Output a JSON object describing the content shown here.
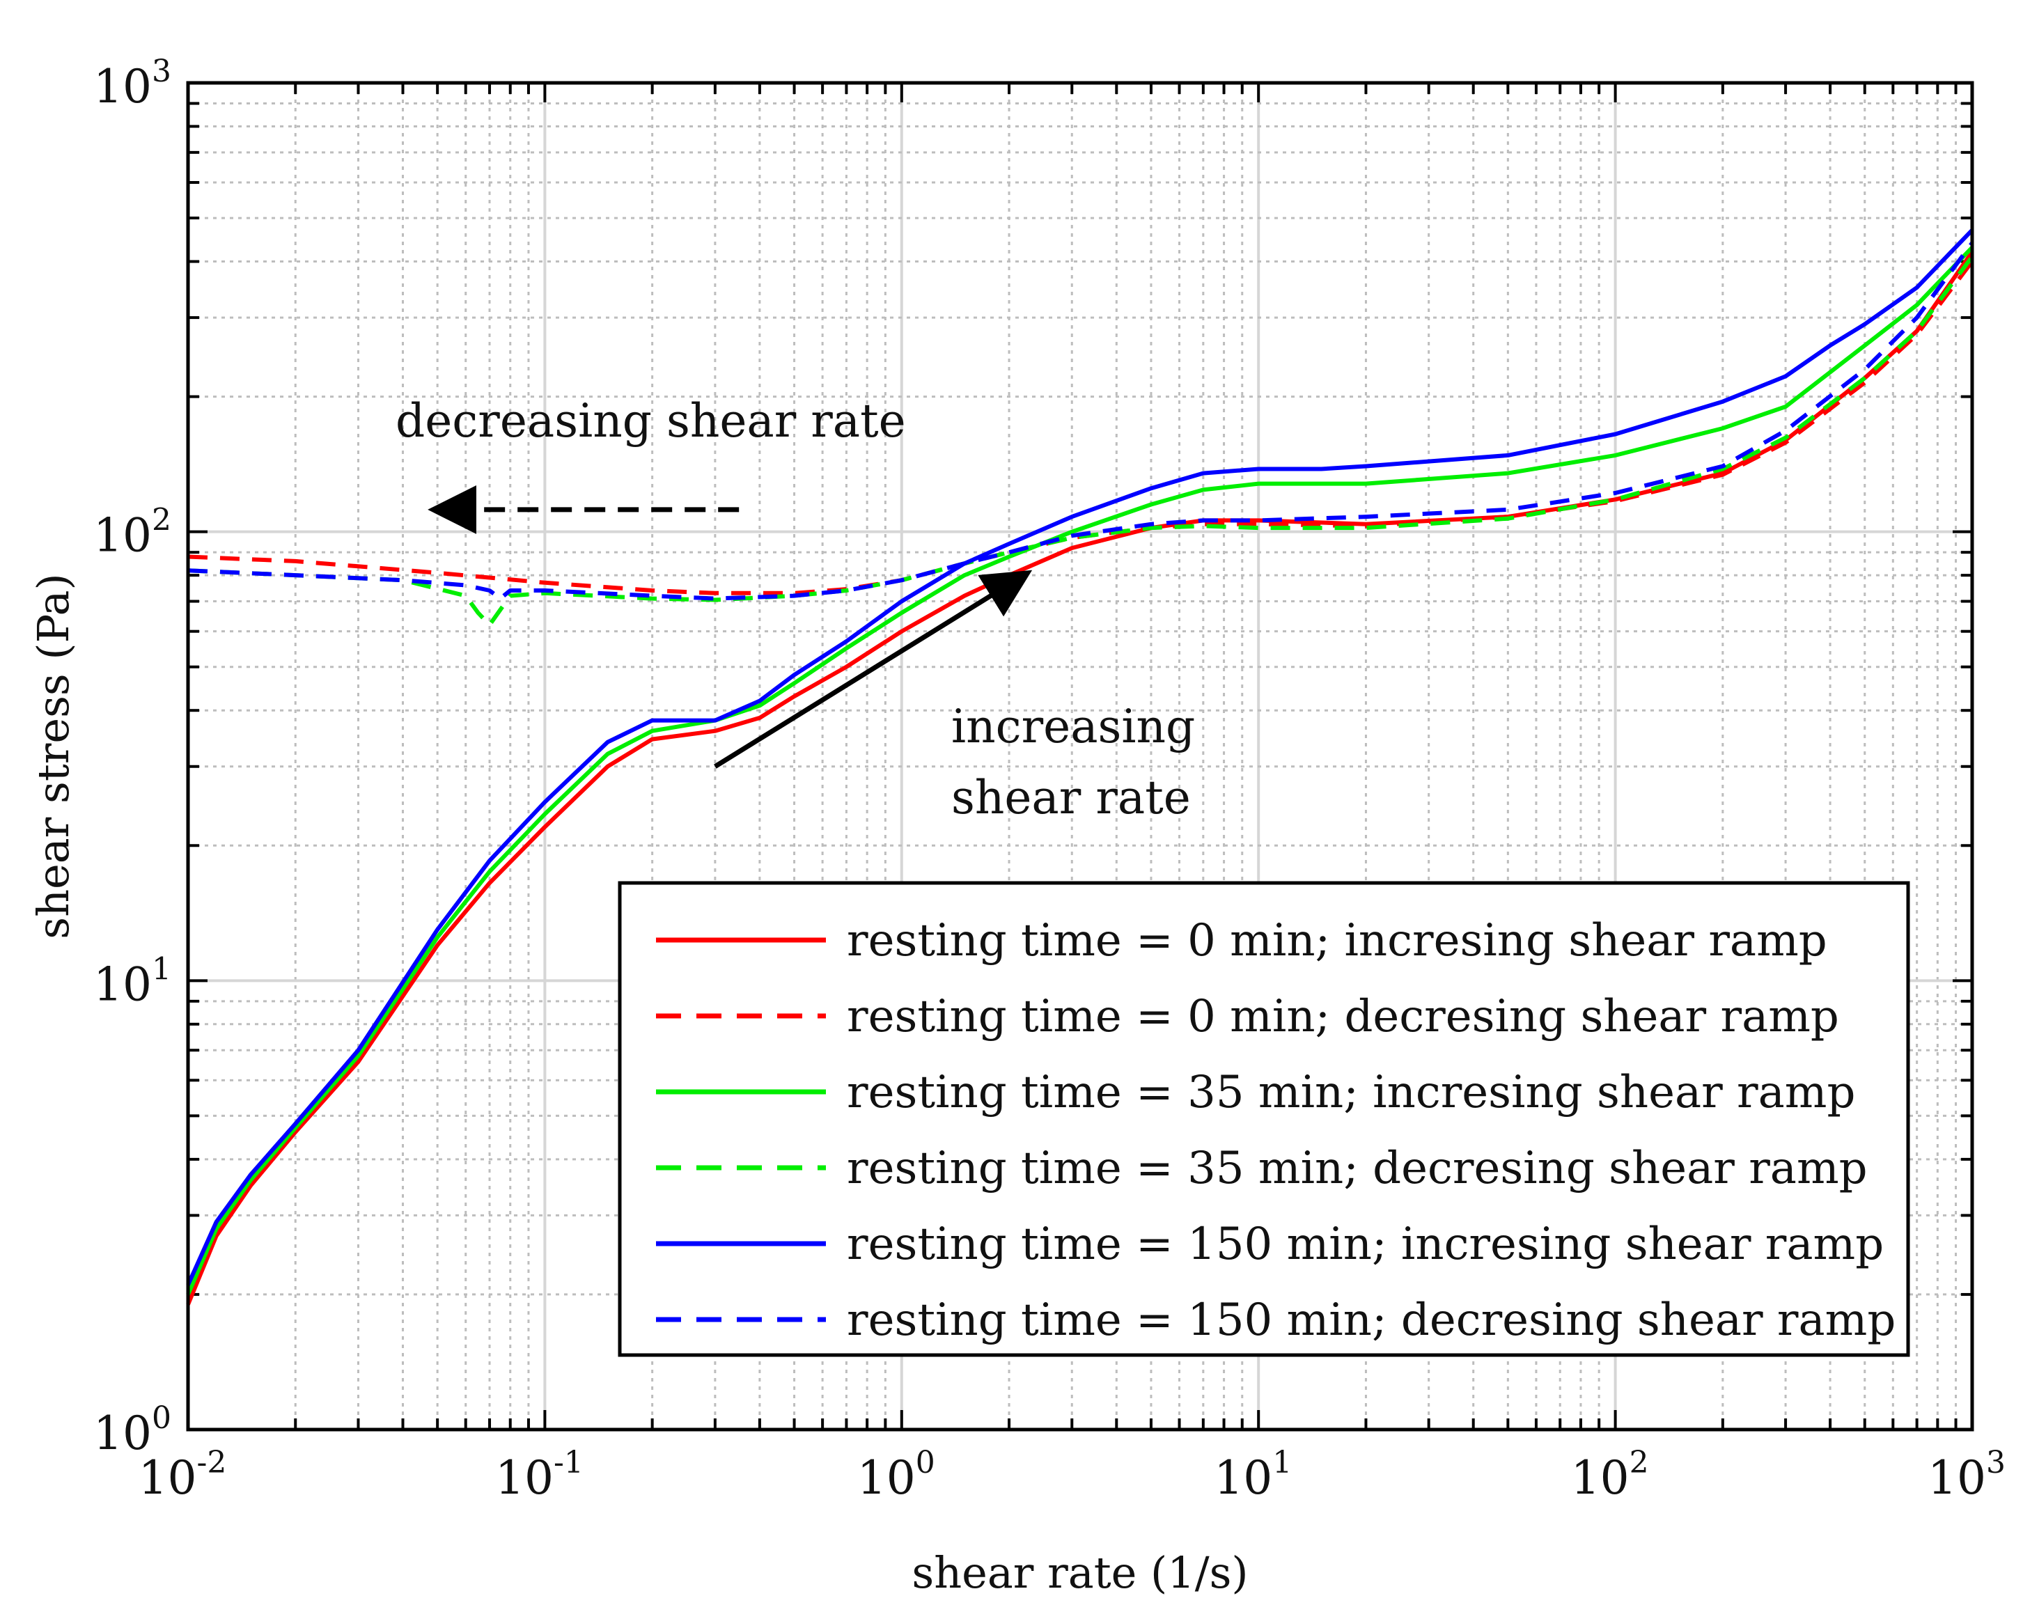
{
  "chart_data": {
    "type": "line",
    "xlabel": "shear rate (1/s)",
    "ylabel": "shear stress (Pa)",
    "xscale": "log",
    "yscale": "log",
    "xlim": [
      0.01,
      1000
    ],
    "ylim": [
      1,
      1000
    ],
    "grid": "major and minor",
    "legend_position": "lower-right",
    "x_ticks": [
      {
        "base": "10",
        "exp": "-2",
        "value": 0.01
      },
      {
        "base": "10",
        "exp": "-1",
        "value": 0.1
      },
      {
        "base": "10",
        "exp": "0",
        "value": 1
      },
      {
        "base": "10",
        "exp": "1",
        "value": 10
      },
      {
        "base": "10",
        "exp": "2",
        "value": 100
      },
      {
        "base": "10",
        "exp": "3",
        "value": 1000
      }
    ],
    "y_ticks": [
      {
        "base": "10",
        "exp": "0",
        "value": 1
      },
      {
        "base": "10",
        "exp": "1",
        "value": 10
      },
      {
        "base": "10",
        "exp": "2",
        "value": 100
      },
      {
        "base": "10",
        "exp": "3",
        "value": 1000
      }
    ],
    "annotations": [
      {
        "id": "decreasing",
        "text": "decreasing shear rate",
        "arrow_from": [
          0.35,
          112
        ],
        "arrow_to": [
          0.05,
          112
        ],
        "arrow_style": "dashed"
      },
      {
        "id": "increasing",
        "lines": [
          "increasing",
          "shear rate"
        ],
        "arrow_from": [
          0.3,
          30
        ],
        "arrow_to": [
          2.2,
          80
        ],
        "arrow_style": "solid"
      }
    ],
    "series": [
      {
        "name": "resting time = 0 min; incresing shear ramp",
        "color": "#ff0000",
        "dash": "solid",
        "x": [
          0.01,
          0.012,
          0.015,
          0.02,
          0.03,
          0.05,
          0.07,
          0.1,
          0.15,
          0.2,
          0.3,
          0.4,
          0.5,
          0.7,
          1,
          1.5,
          2,
          3,
          5,
          7,
          10,
          20,
          50,
          100,
          200,
          300,
          500,
          700,
          1000
        ],
        "y": [
          1.9,
          2.7,
          3.5,
          4.6,
          6.6,
          12,
          16.5,
          22,
          30,
          34.5,
          36,
          38.5,
          43,
          50,
          60,
          72,
          80,
          92,
          102,
          106,
          106,
          104,
          108,
          118,
          135,
          160,
          220,
          280,
          420
        ]
      },
      {
        "name": "resting time = 0 min; decresing shear ramp",
        "color": "#ff0000",
        "dash": "dashed",
        "x": [
          0.01,
          0.02,
          0.05,
          0.1,
          0.2,
          0.3,
          0.5,
          0.7,
          1,
          1.5,
          2,
          3,
          5,
          7,
          10,
          20,
          50,
          100,
          200,
          300,
          500,
          700,
          1000
        ],
        "y": [
          88,
          86,
          81,
          77,
          74,
          73,
          73,
          74.5,
          78,
          85,
          90,
          97,
          102,
          104,
          104,
          103,
          108,
          117,
          134,
          158,
          215,
          275,
          400
        ]
      },
      {
        "name": "resting time = 35 min; incresing shear ramp",
        "color": "#00ee00",
        "dash": "solid",
        "x": [
          0.01,
          0.012,
          0.015,
          0.02,
          0.03,
          0.05,
          0.07,
          0.1,
          0.15,
          0.2,
          0.3,
          0.4,
          0.5,
          0.7,
          1,
          1.5,
          2,
          3,
          5,
          7,
          10,
          20,
          50,
          100,
          200,
          300,
          500,
          700,
          1000
        ],
        "y": [
          2.0,
          2.8,
          3.6,
          4.7,
          6.8,
          12.5,
          17.5,
          23.5,
          32,
          36,
          38,
          41,
          46,
          55,
          66,
          80,
          88,
          100,
          115,
          124,
          128,
          128,
          135,
          148,
          170,
          190,
          260,
          320,
          430
        ]
      },
      {
        "name": "resting time = 35 min; decresing shear ramp",
        "color": "#00ee00",
        "dash": "dashed",
        "x": [
          0.01,
          0.02,
          0.04,
          0.06,
          0.065,
          0.07,
          0.08,
          0.1,
          0.2,
          0.3,
          0.5,
          0.7,
          1,
          1.5,
          2,
          3,
          5,
          7,
          10,
          20,
          50,
          100,
          200,
          300,
          500,
          700,
          1000
        ],
        "y": [
          82,
          80,
          78,
          72,
          66,
          62,
          72,
          73,
          71,
          70.5,
          72,
          74,
          78,
          85,
          90,
          97,
          102,
          103,
          102,
          102,
          107,
          118,
          138,
          162,
          220,
          280,
          410
        ]
      },
      {
        "name": "resting time = 150 min; incresing shear ramp",
        "color": "#0000ff",
        "dash": "solid",
        "x": [
          0.01,
          0.012,
          0.015,
          0.02,
          0.03,
          0.05,
          0.07,
          0.1,
          0.15,
          0.2,
          0.25,
          0.3,
          0.4,
          0.5,
          0.7,
          1,
          1.5,
          2,
          3,
          5,
          7,
          10,
          15,
          20,
          50,
          100,
          200,
          300,
          400,
          500,
          700,
          1000
        ],
        "y": [
          2.1,
          2.9,
          3.7,
          4.8,
          7.0,
          13,
          18.5,
          25,
          34,
          38,
          38,
          38,
          42,
          48,
          57,
          70,
          85,
          94,
          108,
          125,
          135,
          138,
          138,
          140,
          148,
          165,
          195,
          222,
          260,
          290,
          350,
          470
        ]
      },
      {
        "name": "resting time = 150 min; decresing shear ramp",
        "color": "#0000ff",
        "dash": "dashed",
        "x": [
          0.01,
          0.02,
          0.04,
          0.06,
          0.07,
          0.075,
          0.08,
          0.1,
          0.2,
          0.3,
          0.5,
          0.7,
          1,
          1.5,
          2,
          3,
          5,
          7,
          10,
          20,
          50,
          100,
          200,
          300,
          500,
          700,
          1000
        ],
        "y": [
          82,
          80,
          78,
          76,
          74,
          71,
          74,
          74,
          72,
          71,
          72,
          74,
          78,
          85,
          90,
          98,
          104,
          106,
          106,
          108,
          112,
          122,
          140,
          168,
          230,
          300,
          440
        ]
      }
    ]
  }
}
